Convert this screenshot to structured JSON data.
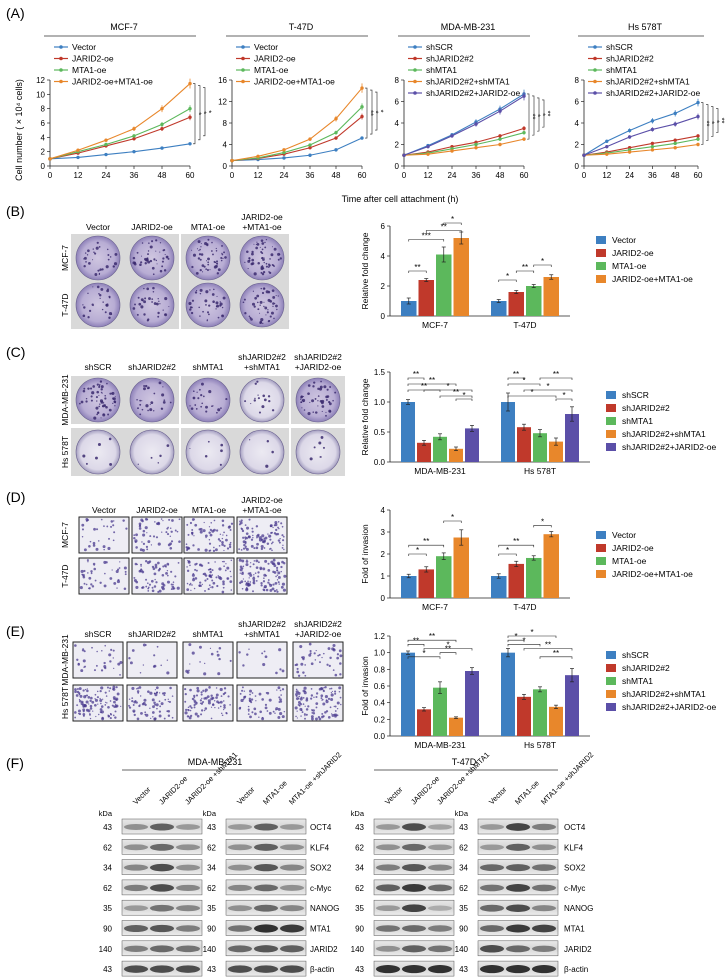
{
  "panels": {
    "A": "(A)",
    "B": "(B)",
    "C": "(C)",
    "D": "(D)",
    "E": "(E)",
    "F": "(F)"
  },
  "colors": {
    "vector": "#3d7fc1",
    "jarid_oe": "#c0392b",
    "mta_oe": "#5cb85c",
    "both_oe": "#e8872b",
    "shboth": "#5b4fa8",
    "sig": "#111111"
  },
  "panel_a": {
    "xlabel": "Time after cell attachment (h)",
    "ylabel": "Cell number ( × 10⁴ cells)",
    "charts": [
      {
        "title": "MCF-7",
        "type": "line",
        "x": [
          0,
          12,
          24,
          36,
          48,
          60
        ],
        "ylim": [
          0,
          12
        ],
        "yticks": [
          0,
          2,
          4,
          6,
          8,
          10,
          12
        ],
        "series": [
          {
            "name": "Vector",
            "values": [
              1.0,
              1.2,
              1.6,
              2.0,
              2.5,
              3.1
            ]
          },
          {
            "name": "JARID2-oe",
            "values": [
              1.0,
              1.8,
              2.8,
              3.8,
              5.2,
              6.8
            ]
          },
          {
            "name": "MTA1-oe",
            "values": [
              1.0,
              2.0,
              3.0,
              4.2,
              5.8,
              8.0
            ]
          },
          {
            "name": "JARID2-oe+MTA1-oe",
            "values": [
              1.0,
              2.2,
              3.6,
              5.2,
              8.0,
              11.5
            ]
          }
        ],
        "sig": [
          "*",
          "*",
          "*"
        ]
      },
      {
        "title": "T-47D",
        "type": "line",
        "x": [
          0,
          12,
          24,
          36,
          48,
          60
        ],
        "ylim": [
          0,
          16
        ],
        "yticks": [
          0,
          4,
          8,
          12,
          16
        ],
        "series": [
          {
            "name": "Vector",
            "values": [
              1.0,
              1.2,
              1.5,
              2.0,
              3.0,
              5.2
            ]
          },
          {
            "name": "JARID2-oe",
            "values": [
              1.0,
              1.4,
              2.2,
              3.4,
              5.2,
              9.2
            ]
          },
          {
            "name": "MTA1-oe",
            "values": [
              1.0,
              1.5,
              2.5,
              3.9,
              6.2,
              11.0
            ]
          },
          {
            "name": "JARID2-oe+MTA1-oe",
            "values": [
              1.0,
              1.8,
              3.0,
              5.0,
              8.8,
              14.5
            ]
          }
        ],
        "sig": [
          "**",
          "*",
          "*"
        ]
      },
      {
        "title": "MDA-MB-231",
        "type": "line",
        "x": [
          0,
          12,
          24,
          36,
          48,
          60
        ],
        "ylim": [
          0,
          8
        ],
        "yticks": [
          0,
          2,
          4,
          6,
          8
        ],
        "series": [
          {
            "name": "shSCR",
            "values": [
              1.0,
              1.9,
              2.9,
              4.1,
              5.3,
              6.7
            ]
          },
          {
            "name": "shJARID2#2",
            "values": [
              1.0,
              1.3,
              1.8,
              2.2,
              2.8,
              3.5
            ]
          },
          {
            "name": "shMTA1",
            "values": [
              1.0,
              1.2,
              1.6,
              2.0,
              2.5,
              3.1
            ]
          },
          {
            "name": "shJARID2#2+shMTA1",
            "values": [
              1.0,
              1.1,
              1.4,
              1.7,
              2.0,
              2.5
            ]
          },
          {
            "name": "shJARID2#2+JARID2-oe",
            "values": [
              1.0,
              1.8,
              2.8,
              3.9,
              5.1,
              6.5
            ]
          }
        ],
        "sig": [
          "**",
          "*",
          "*",
          "**"
        ]
      },
      {
        "title": "Hs 578T",
        "type": "line",
        "x": [
          0,
          12,
          24,
          36,
          48,
          60
        ],
        "ylim": [
          0,
          8
        ],
        "yticks": [
          0,
          2,
          4,
          6,
          8
        ],
        "series": [
          {
            "name": "shSCR",
            "values": [
              1.0,
              2.3,
              3.3,
              4.2,
              4.9,
              5.9
            ]
          },
          {
            "name": "shJARID2#2",
            "values": [
              1.0,
              1.3,
              1.7,
              2.1,
              2.4,
              2.8
            ]
          },
          {
            "name": "shMTA1",
            "values": [
              1.0,
              1.2,
              1.5,
              1.8,
              2.1,
              2.5
            ]
          },
          {
            "name": "shJARID2#2+shMTA1",
            "values": [
              1.0,
              1.1,
              1.3,
              1.5,
              1.7,
              2.0
            ]
          },
          {
            "name": "shJARID2#2+JARID2-oe",
            "values": [
              1.0,
              1.8,
              2.7,
              3.4,
              3.9,
              4.6
            ]
          }
        ],
        "sig": [
          "**",
          "*",
          "*",
          "**"
        ]
      }
    ]
  },
  "panel_b": {
    "col_labels": [
      "Vector",
      "JARID2-oe",
      "MTA1-oe",
      "+MTA1-oe"
    ],
    "col_label_top": "JARID2-oe",
    "row_labels": [
      "MCF-7",
      "T-47D"
    ],
    "chart_data": {
      "type": "bar",
      "ylabel": "Relative fold change",
      "ylim": [
        0,
        6
      ],
      "yticks": [
        0,
        2,
        4,
        6
      ],
      "categories": [
        "MCF-7",
        "T-47D"
      ],
      "series": [
        {
          "name": "Vector",
          "values": [
            1.0,
            1.0
          ]
        },
        {
          "name": "JARID2-oe",
          "values": [
            2.4,
            1.6
          ]
        },
        {
          "name": "MTA1-oe",
          "values": [
            4.1,
            2.0
          ]
        },
        {
          "name": "JARID2-oe+MTA1-oe",
          "values": [
            5.2,
            2.6
          ]
        }
      ],
      "errors": [
        [
          0.2,
          0.1
        ],
        [
          0.1,
          0.1
        ],
        [
          0.5,
          0.1
        ],
        [
          0.4,
          0.15
        ]
      ],
      "sig_labels": [
        "**",
        "***",
        "*",
        "**",
        "*",
        "**",
        "*"
      ]
    }
  },
  "panel_c": {
    "col_labels": [
      "shSCR",
      "shJARID2#2",
      "shMTA1",
      "+shMTA1",
      "+JARID2-oe"
    ],
    "col_label_tops": [
      "shJARID2#2",
      "shJARID2#2"
    ],
    "row_labels": [
      "MDA-MB-231",
      "Hs 578T"
    ],
    "chart_data": {
      "type": "bar",
      "ylabel": "Relative fold change",
      "ylim": [
        0,
        1.5
      ],
      "yticks": [
        0.0,
        0.5,
        1.0,
        1.5
      ],
      "categories": [
        "MDA-MB-231",
        "Hs 578T"
      ],
      "series": [
        {
          "name": "shSCR",
          "values": [
            1.0,
            1.0
          ]
        },
        {
          "name": "shJARID2#2",
          "values": [
            0.32,
            0.58
          ]
        },
        {
          "name": "shMTA1",
          "values": [
            0.42,
            0.48
          ]
        },
        {
          "name": "shJARID2#2+shMTA1",
          "values": [
            0.22,
            0.34
          ]
        },
        {
          "name": "shJARID2#2+JARID2-oe",
          "values": [
            0.56,
            0.8
          ]
        }
      ],
      "errors": [
        [
          0.04,
          0.15
        ],
        [
          0.04,
          0.05
        ],
        [
          0.05,
          0.06
        ],
        [
          0.03,
          0.06
        ],
        [
          0.05,
          0.12
        ]
      ],
      "sig_labels": [
        "**",
        "**",
        "*",
        "**",
        "**",
        "*",
        "**",
        "*",
        "*",
        "*",
        "**",
        "*"
      ]
    }
  },
  "panel_d": {
    "col_labels": [
      "Vector",
      "JARID2-oe",
      "MTA1-oe",
      "+MTA1-oe"
    ],
    "col_label_top": "JARID2-oe",
    "row_labels": [
      "MCF-7",
      "T-47D"
    ],
    "chart_data": {
      "type": "bar",
      "ylabel": "Fold of invasion",
      "ylim": [
        0,
        4
      ],
      "yticks": [
        0,
        1,
        2,
        3,
        4
      ],
      "categories": [
        "MCF-7",
        "T-47D"
      ],
      "series": [
        {
          "name": "Vector",
          "values": [
            1.0,
            1.0
          ]
        },
        {
          "name": "JARID2-oe",
          "values": [
            1.3,
            1.55
          ]
        },
        {
          "name": "MTA1-oe",
          "values": [
            1.9,
            1.82
          ]
        },
        {
          "name": "JARID2-oe+MTA1-oe",
          "values": [
            2.75,
            2.9
          ]
        }
      ],
      "errors": [
        [
          0.08,
          0.1
        ],
        [
          0.12,
          0.12
        ],
        [
          0.15,
          0.1
        ],
        [
          0.35,
          0.12
        ]
      ],
      "sig_labels": [
        "*",
        "**",
        "*",
        "*",
        "**",
        "*"
      ]
    }
  },
  "panel_e": {
    "col_labels": [
      "shSCR",
      "shJARID2#2",
      "shMTA1",
      "+shMTA1",
      "+JARID2-oe"
    ],
    "col_label_tops": [
      "shJARID2#2",
      "shJARID2#2"
    ],
    "row_labels": [
      "MDA-MB-231",
      "Hs 578T"
    ],
    "chart_data": {
      "type": "bar",
      "ylabel": "Fold of invasion",
      "ylim": [
        0,
        1.2
      ],
      "yticks": [
        0.0,
        0.2,
        0.4,
        0.6,
        0.8,
        1.0,
        1.2
      ],
      "categories": [
        "MDA-MB-231",
        "Hs 578T"
      ],
      "series": [
        {
          "name": "shSCR",
          "values": [
            1.0,
            1.0
          ]
        },
        {
          "name": "shJARID2#2",
          "values": [
            0.32,
            0.47
          ]
        },
        {
          "name": "shMTA1",
          "values": [
            0.58,
            0.56
          ]
        },
        {
          "name": "shJARID2#2+shMTA1",
          "values": [
            0.22,
            0.35
          ]
        },
        {
          "name": "shJARID2#2+JARID2-oe",
          "values": [
            0.78,
            0.73
          ]
        }
      ],
      "errors": [
        [
          0.02,
          0.05
        ],
        [
          0.02,
          0.03
        ],
        [
          0.07,
          0.03
        ],
        [
          0.01,
          0.02
        ],
        [
          0.04,
          0.08
        ]
      ],
      "sig_labels": [
        "**",
        "**",
        "*",
        "**",
        "*",
        "*",
        "*",
        "**",
        "*",
        "**"
      ]
    }
  },
  "panel_f": {
    "cell_lines": [
      "MDA-MB-231",
      "T-47D"
    ],
    "kda_label": "kDa",
    "lanes_left": [
      "Vector",
      "JARID2-oe",
      "JARID2-oe +shMTA1"
    ],
    "lanes_right": [
      "Vector",
      "MTA1-oe",
      "MTA1-oe +shJARID2"
    ],
    "proteins": [
      "OCT4",
      "KLF4",
      "SOX2",
      "c-Myc",
      "NANOG",
      "MTA1",
      "JARID2",
      "β-actin"
    ],
    "kda": [
      "43",
      "62",
      "34",
      "62",
      "35",
      "90",
      "140",
      "43"
    ]
  }
}
